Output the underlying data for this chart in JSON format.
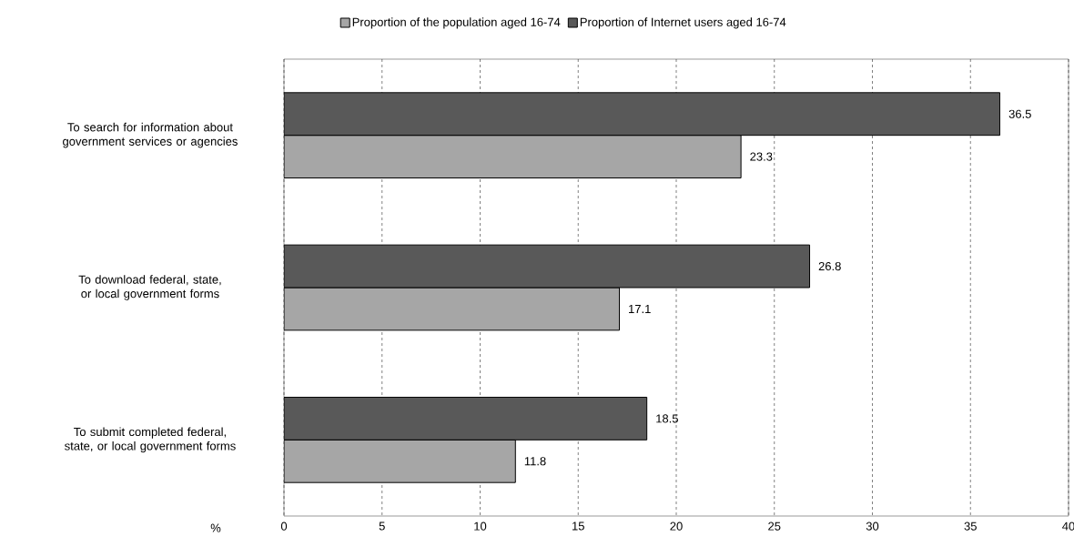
{
  "chart_data": {
    "type": "bar",
    "orientation": "horizontal",
    "xlabel": "%",
    "categories": [
      "To search for information about government services or agencies",
      "To download federal, state, or local government forms",
      "To submit completed federal, state, or local government forms"
    ],
    "series": [
      {
        "name": "Proportion of the population aged 16-74",
        "color": "#a6a6a6",
        "values": [
          23.3,
          17.1,
          11.8
        ]
      },
      {
        "name": "Proportion of Internet users aged 16-74",
        "color": "#595959",
        "values": [
          36.5,
          26.8,
          18.5
        ]
      }
    ],
    "xlim": [
      0,
      40
    ],
    "xticks": [
      0,
      5,
      10,
      15,
      20,
      25,
      30,
      35,
      40
    ],
    "grid": "x",
    "legend": "top",
    "data_labels": true
  }
}
